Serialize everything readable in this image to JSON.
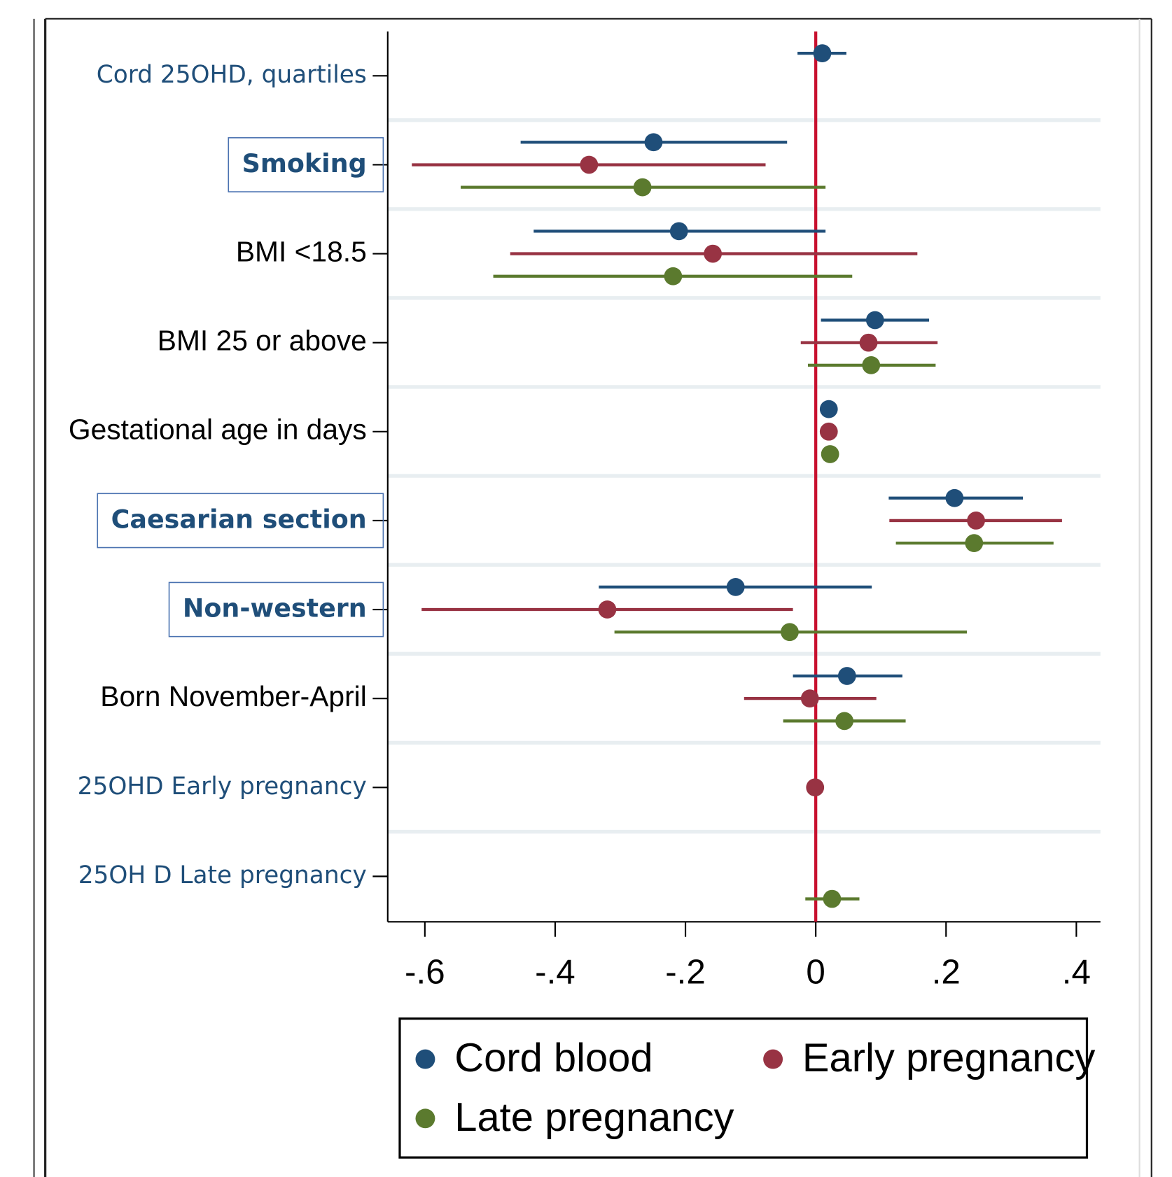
{
  "chart_data": {
    "type": "forest",
    "categories": [
      "Cord 25OHD, quartiles",
      "Smoking",
      "BMI <18.5",
      "BMI 25 or above",
      "Gestational age in days",
      "Caesarian section",
      "Non-western",
      "Born November-April",
      "25OHD Early pregnancy",
      "25OH D Late pregnancy"
    ],
    "series": [
      {
        "name": "Cord blood",
        "color": "#1f4e79",
        "values": [
          0.01,
          -0.249,
          -0.21,
          0.091,
          0.02,
          0.213,
          -0.123,
          0.048,
          null,
          null
        ],
        "lower": [
          -0.028,
          -0.453,
          -0.433,
          0.008,
          null,
          0.112,
          -0.333,
          -0.035,
          null,
          null
        ],
        "upper": [
          0.047,
          -0.044,
          0.015,
          0.174,
          null,
          0.318,
          0.086,
          0.133,
          null,
          null
        ]
      },
      {
        "name": "Early pregnancy",
        "color": "#983343",
        "values": [
          null,
          -0.348,
          -0.158,
          0.081,
          0.02,
          0.246,
          -0.32,
          -0.009,
          -0.001,
          null
        ],
        "lower": [
          null,
          -0.62,
          -0.469,
          -0.023,
          null,
          0.113,
          -0.605,
          -0.11,
          null,
          null
        ],
        "upper": [
          null,
          -0.077,
          0.156,
          0.187,
          null,
          0.378,
          -0.035,
          0.093,
          null,
          null
        ]
      },
      {
        "name": "Late pregnancy",
        "color": "#5b7a2e",
        "values": [
          null,
          -0.266,
          -0.219,
          0.085,
          0.022,
          0.243,
          -0.04,
          0.044,
          null,
          0.025
        ],
        "lower": [
          null,
          -0.545,
          -0.495,
          -0.012,
          null,
          0.123,
          -0.309,
          -0.05,
          null,
          -0.016
        ],
        "upper": [
          null,
          0.015,
          0.056,
          0.184,
          null,
          0.365,
          0.232,
          0.138,
          null,
          0.067
        ]
      }
    ],
    "xlim": [
      -0.657,
      0.437
    ],
    "xticks": [
      {
        "value": -0.6,
        "label": "-.6"
      },
      {
        "value": -0.4,
        "label": "-.4"
      },
      {
        "value": -0.2,
        "label": "-.2"
      },
      0,
      {
        "value": 0.2,
        "label": ".2"
      },
      {
        "value": 0.4,
        "label": ".4"
      }
    ],
    "reference_line": 0,
    "reference_color": "#c8102e"
  }
}
